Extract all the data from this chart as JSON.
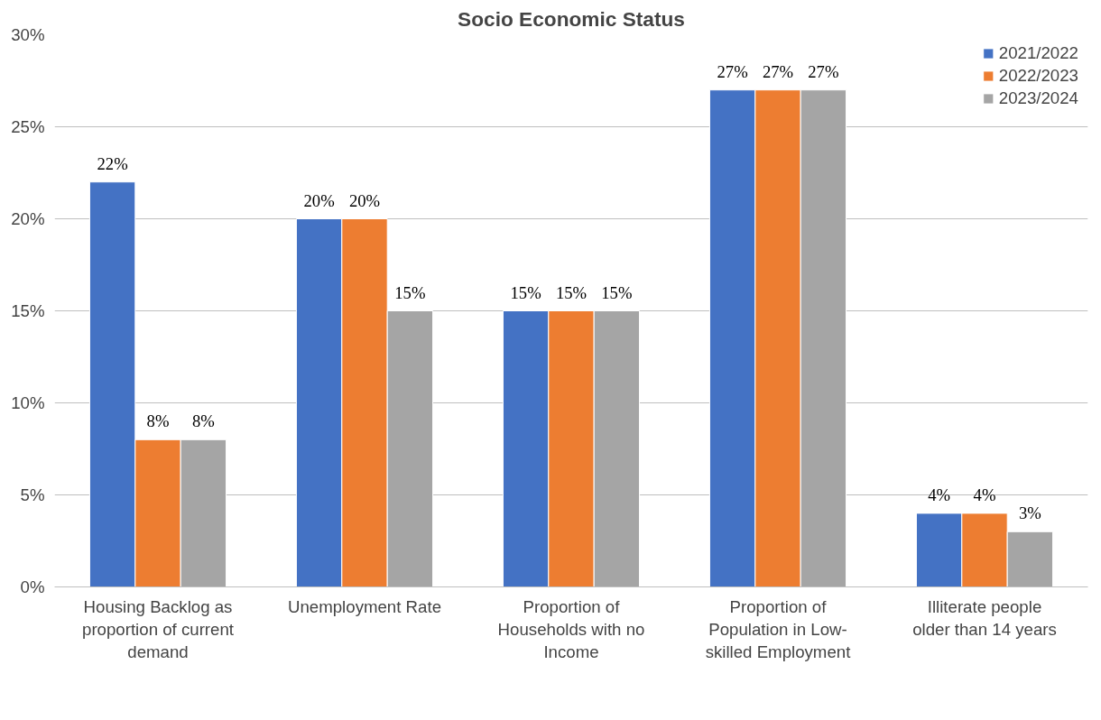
{
  "chart_data": {
    "type": "bar",
    "title": "Socio Economic Status",
    "categories": [
      "Housing Backlog as proportion of current demand",
      "Unemployment Rate",
      "Proportion of Households with no Income",
      "Proportion of Population in Low-skilled Employment",
      "Illiterate people older than 14 years"
    ],
    "series": [
      {
        "name": "2021/2022",
        "color": "#4472c4",
        "values": [
          22,
          20,
          15,
          27,
          4
        ],
        "value_labels": [
          "22%",
          "20%",
          "15%",
          "27%",
          "4%"
        ]
      },
      {
        "name": "2022/2023",
        "color": "#ed7d31",
        "values": [
          8,
          20,
          15,
          27,
          4
        ],
        "value_labels": [
          "8%",
          "20%",
          "15%",
          "27%",
          "4%"
        ]
      },
      {
        "name": "2023/2024",
        "color": "#a5a5a5",
        "values": [
          8,
          15,
          15,
          27,
          3
        ],
        "value_labels": [
          "8%",
          "15%",
          "15%",
          "27%",
          "3%"
        ]
      }
    ],
    "ylim": [
      0,
      30
    ],
    "yticks": [
      {
        "value": 0,
        "label": "0%"
      },
      {
        "value": 5,
        "label": "5%"
      },
      {
        "value": 10,
        "label": "10%"
      },
      {
        "value": 15,
        "label": "15%"
      },
      {
        "value": 20,
        "label": "20%"
      },
      {
        "value": 25,
        "label": "25%"
      },
      {
        "value": 30,
        "label": "30%"
      }
    ],
    "grid": "y",
    "legend": "top right"
  }
}
